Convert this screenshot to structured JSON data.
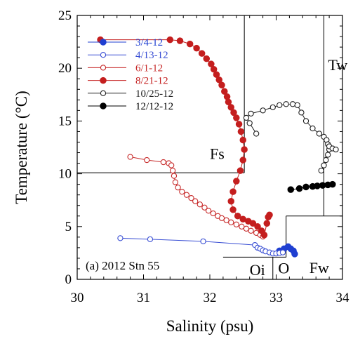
{
  "chart_data": {
    "type": "scatter",
    "title": "",
    "xlabel": "Salinity (psu)",
    "ylabel": "Temperature (°C)",
    "xlim": [
      30,
      34
    ],
    "ylim": [
      0,
      25
    ],
    "x_ticks": [
      "30",
      "31",
      "32",
      "33",
      "34"
    ],
    "y_ticks": [
      "0",
      "5",
      "10",
      "15",
      "20",
      "25"
    ],
    "grid": false,
    "legend_position": "left",
    "annotation": "(a) 2012 Stn 55",
    "series": [
      {
        "name": "3/4-12",
        "color": "#1f3fd1",
        "marker": "filled-circle",
        "points": [
          [
            33.05,
            2.7
          ],
          [
            33.12,
            2.9
          ],
          [
            33.18,
            3.1
          ],
          [
            33.22,
            2.9
          ],
          [
            33.26,
            2.7
          ],
          [
            33.28,
            2.4
          ]
        ]
      },
      {
        "name": "4/13-12",
        "color": "#3a4fd4",
        "marker": "open-circle",
        "points": [
          [
            30.65,
            3.9
          ],
          [
            31.1,
            3.8
          ],
          [
            31.9,
            3.6
          ],
          [
            32.68,
            3.25
          ],
          [
            32.72,
            3.0
          ],
          [
            32.76,
            2.9
          ],
          [
            32.8,
            2.75
          ],
          [
            32.84,
            2.65
          ],
          [
            32.9,
            2.55
          ],
          [
            32.95,
            2.45
          ],
          [
            33.0,
            2.45
          ],
          [
            33.05,
            2.5
          ],
          [
            33.1,
            2.55
          ]
        ]
      },
      {
        "name": "6/1-12",
        "color": "#c72a2a",
        "marker": "open-circle",
        "points": [
          [
            30.8,
            11.6
          ],
          [
            31.05,
            11.3
          ],
          [
            31.3,
            11.1
          ],
          [
            31.38,
            11.0
          ],
          [
            31.42,
            10.8
          ],
          [
            31.44,
            10.3
          ],
          [
            31.46,
            9.8
          ],
          [
            31.48,
            9.2
          ],
          [
            31.52,
            8.7
          ],
          [
            31.58,
            8.3
          ],
          [
            31.65,
            8.0
          ],
          [
            31.72,
            7.7
          ],
          [
            31.78,
            7.4
          ],
          [
            31.85,
            7.1
          ],
          [
            31.92,
            6.8
          ],
          [
            31.98,
            6.5
          ],
          [
            32.05,
            6.25
          ],
          [
            32.12,
            6.0
          ],
          [
            32.18,
            5.8
          ],
          [
            32.25,
            5.6
          ],
          [
            32.32,
            5.4
          ],
          [
            32.4,
            5.2
          ],
          [
            32.48,
            5.0
          ],
          [
            32.55,
            4.8
          ],
          [
            32.62,
            4.6
          ],
          [
            32.7,
            4.4
          ],
          [
            32.76,
            4.2
          ],
          [
            32.8,
            4.05
          ]
        ]
      },
      {
        "name": "8/21-12",
        "color": "#c41e1e",
        "marker": "filled-circle",
        "points": [
          [
            30.35,
            22.7
          ],
          [
            31.4,
            22.7
          ],
          [
            31.55,
            22.6
          ],
          [
            31.7,
            22.3
          ],
          [
            31.8,
            21.9
          ],
          [
            31.88,
            21.4
          ],
          [
            31.95,
            20.9
          ],
          [
            32.02,
            20.4
          ],
          [
            32.06,
            19.9
          ],
          [
            32.1,
            19.4
          ],
          [
            32.14,
            18.9
          ],
          [
            32.18,
            18.4
          ],
          [
            32.22,
            17.8
          ],
          [
            32.26,
            17.3
          ],
          [
            32.28,
            16.8
          ],
          [
            32.32,
            16.3
          ],
          [
            32.36,
            15.8
          ],
          [
            32.4,
            15.3
          ],
          [
            32.44,
            14.7
          ],
          [
            32.47,
            14.0
          ],
          [
            32.5,
            13.2
          ],
          [
            32.52,
            12.3
          ],
          [
            32.5,
            11.3
          ],
          [
            32.46,
            10.3
          ],
          [
            32.4,
            9.3
          ],
          [
            32.35,
            8.3
          ],
          [
            32.32,
            7.4
          ],
          [
            32.35,
            6.6
          ],
          [
            32.42,
            6.0
          ],
          [
            32.5,
            5.7
          ],
          [
            32.58,
            5.5
          ],
          [
            32.65,
            5.3
          ],
          [
            32.72,
            5.0
          ],
          [
            32.78,
            4.6
          ],
          [
            32.82,
            4.2
          ],
          [
            32.86,
            5.3
          ],
          [
            32.88,
            5.9
          ],
          [
            32.9,
            6.1
          ]
        ]
      },
      {
        "name": "10/25-12",
        "color": "#222222",
        "marker": "open-circle",
        "points": [
          [
            32.7,
            13.8
          ],
          [
            32.6,
            14.8
          ],
          [
            32.55,
            15.3
          ],
          [
            32.62,
            15.7
          ],
          [
            32.8,
            16.0
          ],
          [
            32.95,
            16.3
          ],
          [
            33.05,
            16.5
          ],
          [
            33.15,
            16.6
          ],
          [
            33.25,
            16.6
          ],
          [
            33.32,
            16.5
          ],
          [
            33.38,
            15.8
          ],
          [
            33.45,
            15.0
          ],
          [
            33.55,
            14.3
          ],
          [
            33.65,
            13.8
          ],
          [
            33.72,
            13.5
          ],
          [
            33.76,
            13.2
          ],
          [
            33.78,
            12.8
          ],
          [
            33.8,
            12.3
          ],
          [
            33.78,
            11.8
          ],
          [
            33.75,
            11.3
          ],
          [
            33.72,
            10.8
          ],
          [
            33.68,
            10.3
          ],
          [
            33.8,
            12.6
          ],
          [
            33.85,
            12.4
          ],
          [
            33.9,
            12.3
          ]
        ]
      },
      {
        "name": "12/12-12",
        "color": "#000000",
        "marker": "filled-circle",
        "points": [
          [
            33.22,
            8.5
          ],
          [
            33.35,
            8.6
          ],
          [
            33.45,
            8.75
          ],
          [
            33.55,
            8.8
          ],
          [
            33.62,
            8.85
          ],
          [
            33.7,
            8.9
          ],
          [
            33.78,
            8.95
          ],
          [
            33.85,
            9.0
          ]
        ]
      }
    ],
    "region_lines": [
      [
        [
          30,
          10.1
        ],
        [
          32.52,
          10.1
        ]
      ],
      [
        [
          32.52,
          10.1
        ],
        [
          32.52,
          25
        ]
      ],
      [
        [
          33.72,
          6.0
        ],
        [
          33.72,
          25
        ]
      ],
      [
        [
          33.15,
          6.0
        ],
        [
          34,
          6.0
        ]
      ],
      [
        [
          33.15,
          2.1
        ],
        [
          33.15,
          6.0
        ]
      ],
      [
        [
          32.2,
          2.1
        ],
        [
          33.15,
          2.1
        ]
      ],
      [
        [
          32.95,
          0
        ],
        [
          32.95,
          2.1
        ]
      ]
    ],
    "region_labels": [
      {
        "text": "Tw",
        "x": 33.72,
        "y": 19.8
      },
      {
        "text": "Fs",
        "x": 32.0,
        "y": 11.4
      },
      {
        "text": "Oi",
        "x": 32.6,
        "y": 0.4
      },
      {
        "text": "O",
        "x": 33.03,
        "y": 0.55
      },
      {
        "text": "Fw",
        "x": 33.5,
        "y": 0.6
      }
    ]
  }
}
